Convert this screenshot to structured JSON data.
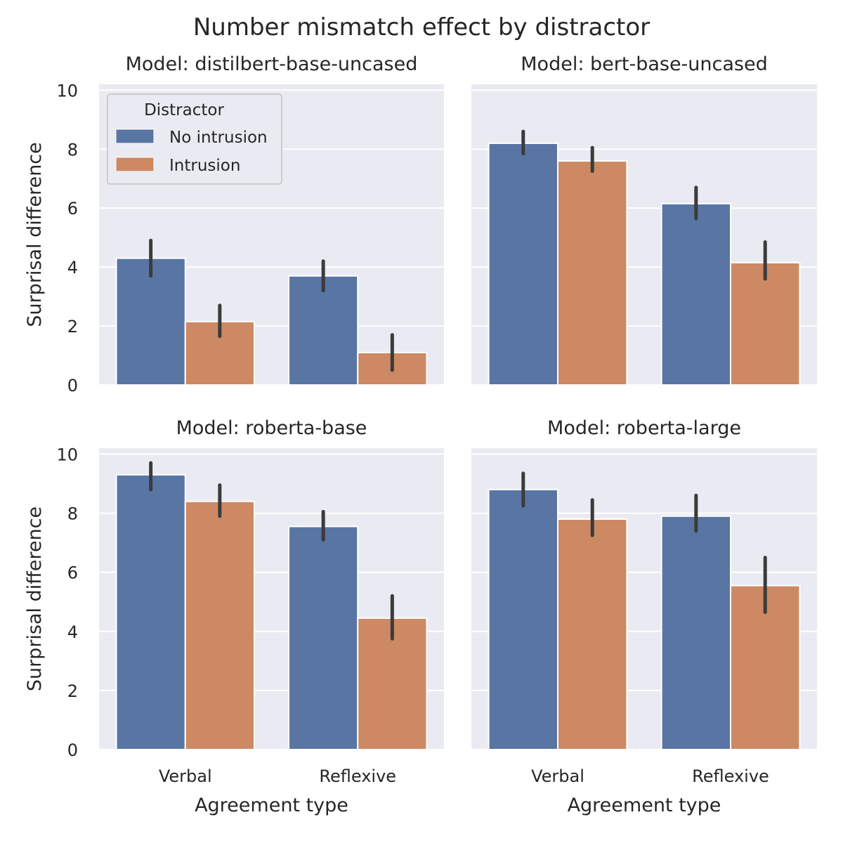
{
  "figure_title": "Number mismatch effect by distractor",
  "colors": {
    "No intrusion": "#5975a4",
    "Intrusion": "#cc8963",
    "panel_bg": "#eaeaf2"
  },
  "legend": {
    "title": "Distractor",
    "placement": "upper-left",
    "entries": [
      "No intrusion",
      "Intrusion"
    ]
  },
  "chart_data": {
    "type": "bar",
    "categories": [
      "Verbal",
      "Reflexive"
    ],
    "xlabel": "Agreement type",
    "ylabel": "Surprisal difference",
    "ylim": [
      0,
      10.2
    ],
    "yticks": [
      0,
      2,
      4,
      6,
      8,
      10
    ],
    "grid": true,
    "panels": [
      {
        "title": "Model: distilbert-base-uncased",
        "series": [
          {
            "name": "No intrusion",
            "values": [
              4.3,
              3.7
            ],
            "ci_low": [
              3.7,
              3.2
            ],
            "ci_high": [
              4.9,
              4.2
            ]
          },
          {
            "name": "Intrusion",
            "values": [
              2.15,
              1.1
            ],
            "ci_low": [
              1.65,
              0.5
            ],
            "ci_high": [
              2.7,
              1.7
            ]
          }
        ]
      },
      {
        "title": "Model: bert-base-uncased",
        "series": [
          {
            "name": "No intrusion",
            "values": [
              8.2,
              6.15
            ],
            "ci_low": [
              7.85,
              5.65
            ],
            "ci_high": [
              8.6,
              6.7
            ]
          },
          {
            "name": "Intrusion",
            "values": [
              7.6,
              4.15
            ],
            "ci_low": [
              7.25,
              3.6
            ],
            "ci_high": [
              8.05,
              4.85
            ]
          }
        ]
      },
      {
        "title": "Model: roberta-base",
        "series": [
          {
            "name": "No intrusion",
            "values": [
              9.3,
              7.55
            ],
            "ci_low": [
              8.8,
              7.1
            ],
            "ci_high": [
              9.7,
              8.05
            ]
          },
          {
            "name": "Intrusion",
            "values": [
              8.4,
              4.45
            ],
            "ci_low": [
              7.9,
              3.75
            ],
            "ci_high": [
              8.95,
              5.2
            ]
          }
        ]
      },
      {
        "title": "Model: roberta-large",
        "series": [
          {
            "name": "No intrusion",
            "values": [
              8.8,
              7.9
            ],
            "ci_low": [
              8.25,
              7.4
            ],
            "ci_high": [
              9.35,
              8.6
            ]
          },
          {
            "name": "Intrusion",
            "values": [
              7.8,
              5.55
            ],
            "ci_low": [
              7.25,
              4.65
            ],
            "ci_high": [
              8.45,
              6.5
            ]
          }
        ]
      }
    ]
  }
}
